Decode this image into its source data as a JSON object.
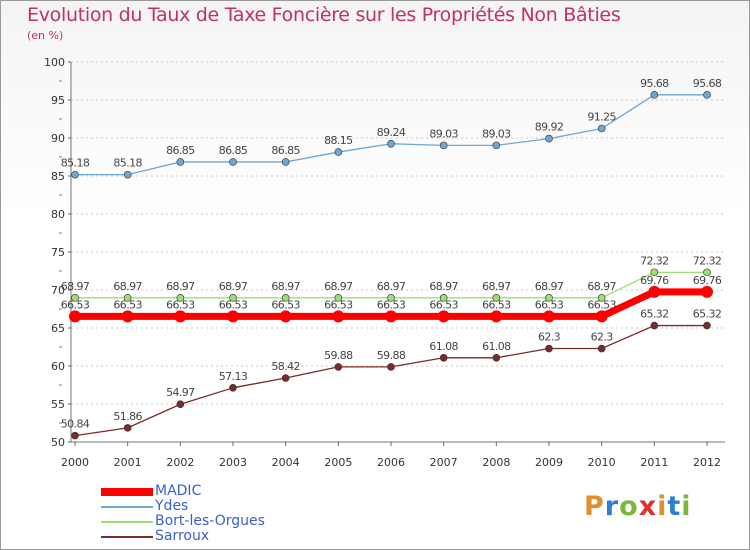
{
  "title": "Evolution du Taux de Taxe Foncière sur les Propriétés Non Bâties",
  "unit_label": "(en %)",
  "logo": {
    "letters": [
      "P",
      "r",
      "o",
      "x",
      "i",
      "t",
      "i"
    ],
    "colors": [
      "#e2902c",
      "#2b7fd0",
      "#7ab83a",
      "#d8342c",
      "#e2902c",
      "#2b7fd0",
      "#7ab83a"
    ]
  },
  "chart_data": {
    "type": "line",
    "title": "Evolution du Taux de Taxe Foncière sur les Propriétés Non Bâties",
    "ylabel": "(en %)",
    "xlabel": "",
    "x": [
      "2000",
      "2001",
      "2002",
      "2003",
      "2004",
      "2005",
      "2006",
      "2007",
      "2008",
      "2009",
      "2010",
      "2011",
      "2012"
    ],
    "ylim": [
      50,
      100
    ],
    "yticks": [
      50,
      55,
      60,
      65,
      70,
      75,
      80,
      85,
      90,
      95,
      100
    ],
    "grid": "horizontal",
    "legend_position": "bottom-left",
    "series": [
      {
        "name": "MADIC",
        "color": "#ff0000",
        "values": [
          66.53,
          66.53,
          66.53,
          66.53,
          66.53,
          66.53,
          66.53,
          66.53,
          66.53,
          66.53,
          66.53,
          69.76,
          69.76
        ],
        "labels": [
          "66.53",
          "66.53",
          "66.53",
          "66.53",
          "66.53",
          "66.53",
          "66.53",
          "66.53",
          "66.53",
          "66.53",
          "66.53",
          "69.76",
          "69.76"
        ]
      },
      {
        "name": "Ydes",
        "color": "#6ea6d4",
        "values": [
          85.18,
          85.18,
          86.85,
          86.85,
          86.85,
          88.15,
          89.24,
          89.03,
          89.03,
          89.92,
          91.25,
          95.68,
          95.68
        ],
        "labels": [
          "85.18",
          "85.18",
          "86.85",
          "86.85",
          "86.85",
          "88.15",
          "89.24",
          "89.03",
          "89.03",
          "89.92",
          "91.25",
          "95.68",
          "95.68"
        ]
      },
      {
        "name": "Bort-les-Orgues",
        "color": "#9be070",
        "values": [
          68.97,
          68.97,
          68.97,
          68.97,
          68.97,
          68.97,
          68.97,
          68.97,
          68.97,
          68.97,
          68.97,
          72.32,
          72.32
        ],
        "labels": [
          "68.97",
          "68.97",
          "68.97",
          "68.97",
          "68.97",
          "68.97",
          "68.97",
          "68.97",
          "68.97",
          "68.97",
          "68.97",
          "72.32",
          "72.32"
        ]
      },
      {
        "name": "Sarroux",
        "color": "#7a2a2a",
        "values": [
          50.84,
          51.86,
          54.97,
          57.13,
          58.42,
          59.88,
          59.88,
          61.08,
          61.08,
          62.3,
          62.3,
          65.32,
          65.32
        ],
        "labels": [
          "50.84",
          "51.86",
          "54.97",
          "57.13",
          "58.42",
          "59.88",
          "59.88",
          "61.08",
          "61.08",
          "62.3",
          "62.3",
          "65.32",
          "65.32"
        ]
      }
    ]
  }
}
